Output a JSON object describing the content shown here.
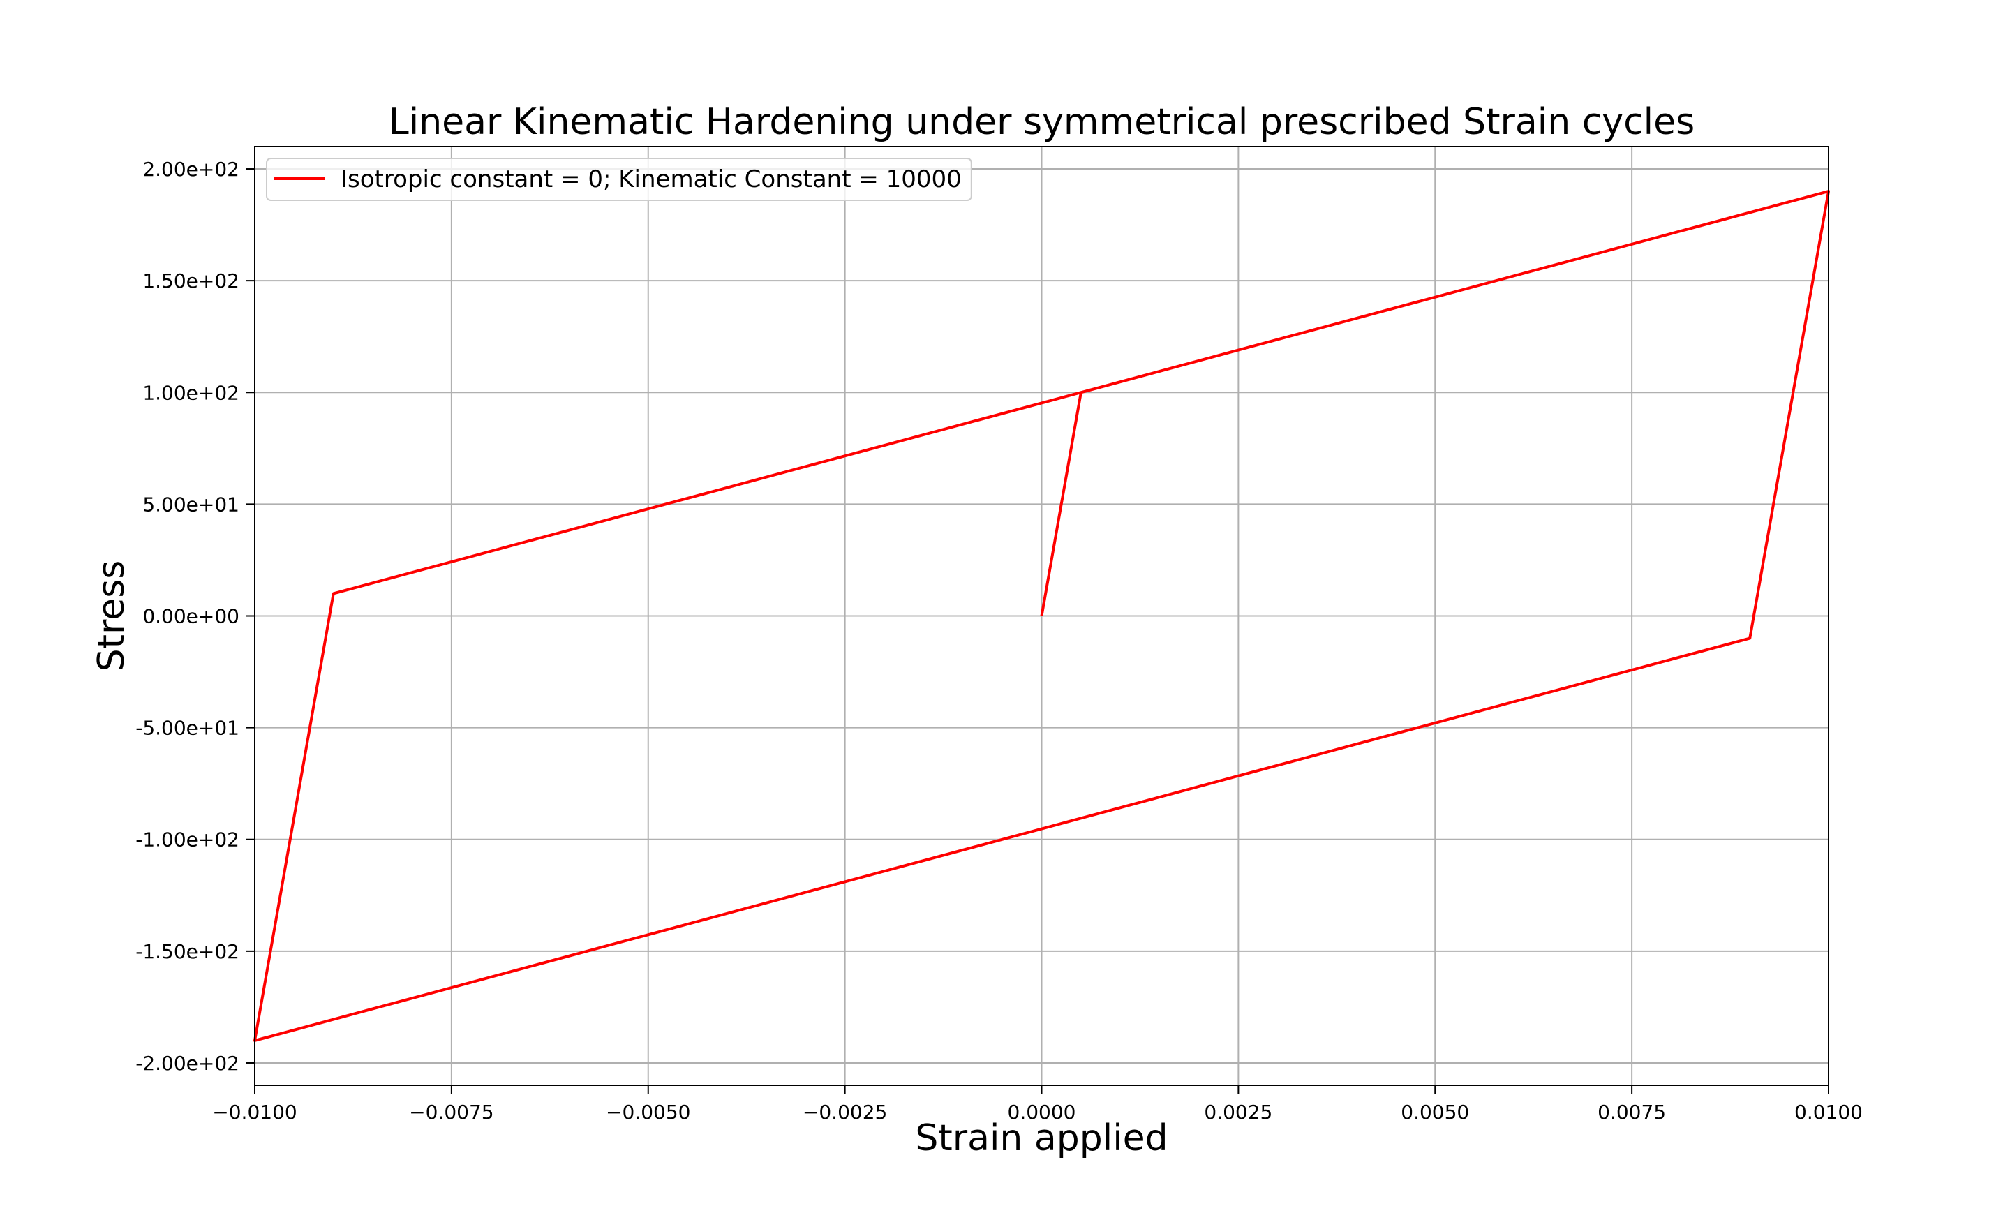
{
  "chart_data": {
    "type": "line",
    "title": "Linear Kinematic Hardening under symmetrical prescribed Strain cycles",
    "xlabel": "Strain applied",
    "ylabel": "Stress",
    "xlim": [
      -0.01,
      0.01
    ],
    "ylim": [
      -210,
      210
    ],
    "grid": true,
    "legend_position": "upper-left",
    "xticks": [
      -0.01,
      -0.0075,
      -0.005,
      -0.0025,
      0.0,
      0.0025,
      0.005,
      0.0075,
      0.01
    ],
    "xtick_labels": [
      "−0.0100",
      "−0.0075",
      "−0.0050",
      "−0.0025",
      "0.0000",
      "0.0025",
      "0.0050",
      "0.0075",
      "0.0100"
    ],
    "yticks": [
      200,
      150,
      100,
      50,
      0,
      -50,
      -100,
      -150,
      -200
    ],
    "ytick_labels": [
      "2.00e+02",
      "1.50e+02",
      "1.00e+02",
      "5.00e+01",
      "0.00e+00",
      "-5.00e+01",
      "-1.00e+02",
      "-1.50e+02",
      "-2.00e+02"
    ],
    "series": [
      {
        "name": "Isotropic constant = 0; Kinematic Constant = 10000",
        "color": "#ff0000",
        "x": [
          0.0,
          0.0005,
          0.01,
          0.009,
          -0.01,
          -0.009,
          0.01,
          0.009,
          -0.01
        ],
        "y": [
          0.0,
          100.0,
          190.0,
          -10.0,
          -190.0,
          10.0,
          190.0,
          -10.0,
          -190.0
        ]
      }
    ]
  }
}
